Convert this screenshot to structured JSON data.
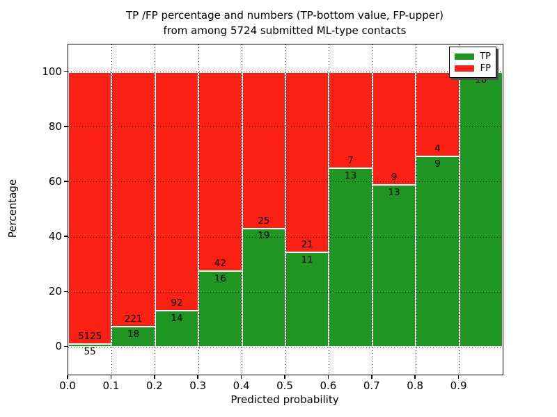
{
  "title": {
    "line1": "TP /FP percentage and numbers (TP-bottom value, FP-upper)",
    "line2": "from among 5724 submitted ML-type contacts"
  },
  "axes": {
    "xlabel": "Predicted probability",
    "ylabel": "Percentage",
    "x_tick_labels": [
      "0.0",
      "0.1",
      "0.2",
      "0.3",
      "0.4",
      "0.5",
      "0.6",
      "0.7",
      "0.8",
      "0.9"
    ],
    "y_tick_labels": [
      "0",
      "20",
      "40",
      "60",
      "80",
      "100"
    ]
  },
  "legend": {
    "items": [
      {
        "label": "TP",
        "color": "#1f9622"
      },
      {
        "label": "FP",
        "color": "#fa2014"
      }
    ]
  },
  "chart_data": {
    "type": "bar",
    "stacked": true,
    "normalized_to_percent": true,
    "title": "TP /FP percentage and numbers (TP-bottom value, FP-upper) from among 5724 submitted ML-type contacts",
    "xlabel": "Predicted probability",
    "ylabel": "Percentage",
    "categories": [
      "0.0-0.1",
      "0.1-0.2",
      "0.2-0.3",
      "0.3-0.4",
      "0.4-0.5",
      "0.5-0.6",
      "0.6-0.7",
      "0.7-0.8",
      "0.8-0.9",
      "0.9-1.0"
    ],
    "x_bin_edges": [
      0.0,
      0.1,
      0.2,
      0.3,
      0.4,
      0.5,
      0.6,
      0.7,
      0.8,
      0.9,
      1.0
    ],
    "series": [
      {
        "name": "TP",
        "color": "#1f9622",
        "values": [
          55,
          18,
          14,
          16,
          19,
          11,
          13,
          13,
          9,
          10
        ]
      },
      {
        "name": "FP",
        "color": "#fa2014",
        "values": [
          5125,
          221,
          92,
          42,
          25,
          21,
          7,
          9,
          4,
          0
        ]
      }
    ],
    "tp_percent": [
      1.06,
      7.53,
      13.21,
      27.59,
      43.18,
      34.38,
      65.0,
      59.09,
      69.23,
      100.0
    ],
    "total_contacts": 5724,
    "x_ticks": [
      0.0,
      0.1,
      0.2,
      0.3,
      0.4,
      0.5,
      0.6,
      0.7,
      0.8,
      0.9
    ],
    "y_ticks": [
      0,
      20,
      40,
      60,
      80,
      100
    ],
    "xlim": [
      0.0,
      1.0
    ],
    "ylim": [
      -10,
      110
    ],
    "grid": true,
    "grid_style": "dotted-black-above-bars",
    "bar_edge_color": "#ffffff",
    "legend_position": "upper right"
  }
}
